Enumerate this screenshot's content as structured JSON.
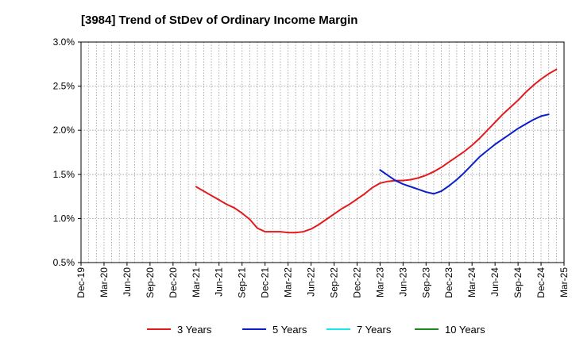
{
  "chart_data": {
    "type": "line",
    "title": "[3984]  Trend of StDev of Ordinary Income Margin",
    "xlabel": "",
    "ylabel": "",
    "y_axis": {
      "range": [
        0.5,
        3.0
      ],
      "ticks": [
        0.5,
        1.0,
        1.5,
        2.0,
        2.5,
        3.0
      ],
      "tick_labels": [
        "0.5%",
        "1.0%",
        "1.5%",
        "2.0%",
        "2.5%",
        "3.0%"
      ]
    },
    "x_axis": {
      "tick_labels": [
        "Dec-19",
        "Mar-20",
        "Jun-20",
        "Sep-20",
        "Dec-20",
        "Mar-21",
        "Jun-21",
        "Sep-21",
        "Dec-21",
        "Mar-22",
        "Jun-22",
        "Sep-22",
        "Dec-22",
        "Mar-23",
        "Jun-23",
        "Sep-23",
        "Dec-23",
        "Mar-24",
        "Jun-24",
        "Sep-24",
        "Dec-24",
        "Mar-25"
      ]
    },
    "grid": "vertical dotted",
    "legend_position": "bottom",
    "series": [
      {
        "name": "3 Years",
        "color": "#e31a1c",
        "points": [
          [
            "Mar-21",
            1.36
          ],
          [
            "Apr-21",
            1.31
          ],
          [
            "May-21",
            1.26
          ],
          [
            "Jun-21",
            1.21
          ],
          [
            "Jul-21",
            1.16
          ],
          [
            "Aug-21",
            1.12
          ],
          [
            "Sep-21",
            1.06
          ],
          [
            "Oct-21",
            0.99
          ],
          [
            "Nov-21",
            0.89
          ],
          [
            "Dec-21",
            0.85
          ],
          [
            "Jan-22",
            0.85
          ],
          [
            "Feb-22",
            0.85
          ],
          [
            "Mar-22",
            0.84
          ],
          [
            "Apr-22",
            0.84
          ],
          [
            "May-22",
            0.85
          ],
          [
            "Jun-22",
            0.88
          ],
          [
            "Jul-22",
            0.93
          ],
          [
            "Aug-22",
            0.99
          ],
          [
            "Sep-22",
            1.05
          ],
          [
            "Oct-22",
            1.11
          ],
          [
            "Nov-22",
            1.16
          ],
          [
            "Dec-22",
            1.22
          ],
          [
            "Jan-23",
            1.28
          ],
          [
            "Feb-23",
            1.35
          ],
          [
            "Mar-23",
            1.4
          ],
          [
            "Apr-23",
            1.42
          ],
          [
            "May-23",
            1.43
          ],
          [
            "Jun-23",
            1.43
          ],
          [
            "Jul-23",
            1.44
          ],
          [
            "Aug-23",
            1.46
          ],
          [
            "Sep-23",
            1.49
          ],
          [
            "Oct-23",
            1.53
          ],
          [
            "Nov-23",
            1.58
          ],
          [
            "Dec-23",
            1.64
          ],
          [
            "Jan-24",
            1.7
          ],
          [
            "Feb-24",
            1.76
          ],
          [
            "Mar-24",
            1.83
          ],
          [
            "Apr-24",
            1.91
          ],
          [
            "May-24",
            2.0
          ],
          [
            "Jun-24",
            2.09
          ],
          [
            "Jul-24",
            2.18
          ],
          [
            "Aug-24",
            2.26
          ],
          [
            "Sep-24",
            2.34
          ],
          [
            "Oct-24",
            2.43
          ],
          [
            "Nov-24",
            2.51
          ],
          [
            "Dec-24",
            2.58
          ],
          [
            "Jan-25",
            2.64
          ],
          [
            "Feb-25",
            2.69
          ]
        ]
      },
      {
        "name": "5 Years",
        "color": "#0a1fcc",
        "points": [
          [
            "Mar-23",
            1.55
          ],
          [
            "Apr-23",
            1.49
          ],
          [
            "May-23",
            1.43
          ],
          [
            "Jun-23",
            1.39
          ],
          [
            "Jul-23",
            1.36
          ],
          [
            "Aug-23",
            1.33
          ],
          [
            "Sep-23",
            1.3
          ],
          [
            "Oct-23",
            1.28
          ],
          [
            "Nov-23",
            1.31
          ],
          [
            "Dec-23",
            1.37
          ],
          [
            "Jan-24",
            1.44
          ],
          [
            "Feb-24",
            1.52
          ],
          [
            "Mar-24",
            1.61
          ],
          [
            "Apr-24",
            1.7
          ],
          [
            "May-24",
            1.77
          ],
          [
            "Jun-24",
            1.84
          ],
          [
            "Jul-24",
            1.9
          ],
          [
            "Aug-24",
            1.96
          ],
          [
            "Sep-24",
            2.02
          ],
          [
            "Oct-24",
            2.07
          ],
          [
            "Nov-24",
            2.12
          ],
          [
            "Dec-24",
            2.16
          ],
          [
            "Jan-25",
            2.18
          ]
        ]
      },
      {
        "name": "7 Years",
        "color": "#19e6e6",
        "points": []
      },
      {
        "name": "10 Years",
        "color": "#1a8a1a",
        "points": []
      }
    ]
  }
}
